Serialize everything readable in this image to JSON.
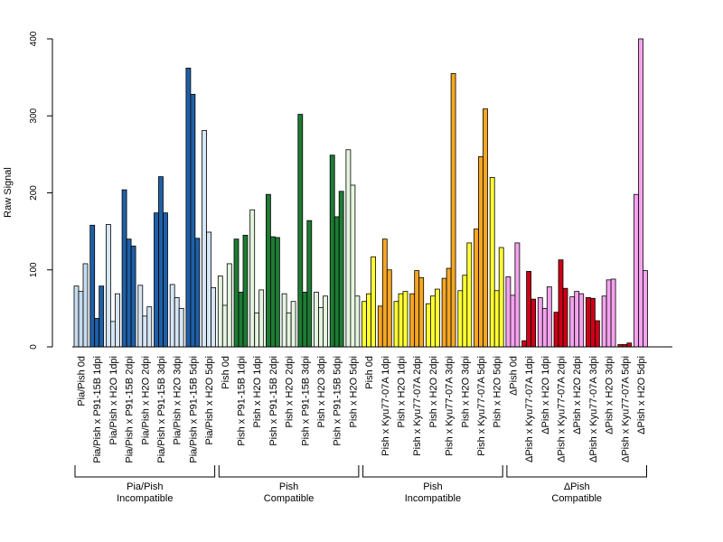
{
  "chart_data": {
    "type": "bar",
    "title": "",
    "xlabel": "",
    "ylabel": "Raw Signal",
    "ylim": [
      0,
      400
    ],
    "yticks": [
      0,
      100,
      200,
      300,
      400
    ],
    "grid": false,
    "legend": "none",
    "bars_per_category": 3,
    "categories": [
      "Pia/Pish 0d",
      "Pia/Pish x P91-15B 1dpi",
      "Pia/Pish x H2O 1dpi",
      "Pia/Pish x P91-15B 2dpi",
      "Pia/Pish x H2O 2dpi",
      "Pia/Pish x P91-15B 3dpi",
      "Pia/Pish x H2O 3dpi",
      "Pia/Pish x P91-15B 5dpi",
      "Pia/Pish x H2O 5dpi",
      "Pish 0d",
      "Pish x P91-15B 1dpi",
      "Pish x H2O 1dpi",
      "Pish x P91-15B 2dpi",
      "Pish x H2O 2dpi",
      "Pish x P91-15B 3dpi",
      "Pish x H2O 3dpi",
      "Pish x P91-15B 5dpi",
      "Pish x H2O 5dpi",
      "Pish 0d",
      "Pish x Kyu77-07A 1dpi",
      "Pish x H2O 1dpi",
      "Pish x Kyu77-07A 2dpi",
      "Pish x H2O 2dpi",
      "Pish x Kyu77-07A 3dpi",
      "Pish x H2O 3dpi",
      "Pish x Kyu77-07A 5dpi",
      "Pish x H2O 5dpi",
      "ΔPish 0d",
      "ΔPish x Kyu77-07A 1dpi",
      "ΔPish x H2O 1dpi",
      "ΔPish x Kyu77-07A 2dpi",
      "ΔPish x H2O 2dpi",
      "ΔPish x Kyu77-07A 3dpi",
      "ΔPish x H2O 3dpi",
      "ΔPish x Kyu77-07A 5dpi",
      "ΔPish x H2O 5dpi"
    ],
    "values": [
      [
        79,
        72,
        108
      ],
      [
        158,
        37,
        79
      ],
      [
        159,
        33,
        69
      ],
      [
        204,
        140,
        131
      ],
      [
        80,
        40,
        52
      ],
      [
        174,
        221,
        174
      ],
      [
        81,
        64,
        50
      ],
      [
        362,
        328,
        141
      ],
      [
        281,
        149,
        77
      ],
      [
        92,
        54,
        108
      ],
      [
        140,
        71,
        145
      ],
      [
        178,
        44,
        74
      ],
      [
        198,
        143,
        142
      ],
      [
        69,
        44,
        59
      ],
      [
        302,
        71,
        164
      ],
      [
        71,
        51,
        66
      ],
      [
        249,
        169,
        202
      ],
      [
        256,
        210,
        66
      ],
      [
        59,
        69,
        117
      ],
      [
        53,
        140,
        100
      ],
      [
        59,
        69,
        72
      ],
      [
        69,
        99,
        90
      ],
      [
        56,
        66,
        75
      ],
      [
        89,
        102,
        355
      ],
      [
        73,
        93,
        135
      ],
      [
        153,
        247,
        309
      ],
      [
        220,
        73,
        129
      ],
      [
        91,
        67,
        135
      ],
      [
        8,
        98,
        62
      ],
      [
        64,
        50,
        78
      ],
      [
        45,
        113,
        76
      ],
      [
        65,
        72,
        69
      ],
      [
        64,
        63,
        34
      ],
      [
        66,
        87,
        88
      ],
      [
        3,
        3,
        5
      ],
      [
        198,
        400,
        99
      ]
    ],
    "colors": [
      "#c6dbef",
      "#1f5fa6",
      "#d6e6f5",
      "#1f5fa6",
      "#d6e6f5",
      "#1f5fa6",
      "#d6e6f5",
      "#1f5fa6",
      "#d6e6f5",
      "#e5f5e0",
      "#1e7b34",
      "#e5f5e0",
      "#1e7b34",
      "#e5f5e0",
      "#1e7b34",
      "#e5f5e0",
      "#1e7b34",
      "#e5f5e0",
      "#ffff33",
      "#f5a623",
      "#ffff33",
      "#f5a623",
      "#ffff33",
      "#f5a623",
      "#ffff33",
      "#f5a623",
      "#ffff33",
      "#f4a3ee",
      "#cc0018",
      "#f4a3ee",
      "#cc0018",
      "#f4a3ee",
      "#cc0018",
      "#f4a3ee",
      "#cc0018",
      "#f4a3ee"
    ],
    "groups": [
      {
        "label_line1": "Pia/Pish",
        "label_line2": "Incompatible",
        "start": 0,
        "end": 8
      },
      {
        "label_line1": "Pish",
        "label_line2": "Compatible",
        "start": 9,
        "end": 17
      },
      {
        "label_line1": "Pish",
        "label_line2": "Incompatible",
        "start": 18,
        "end": 26
      },
      {
        "label_line1": "ΔPish",
        "label_line2": "Compatible",
        "start": 27,
        "end": 35
      }
    ]
  }
}
